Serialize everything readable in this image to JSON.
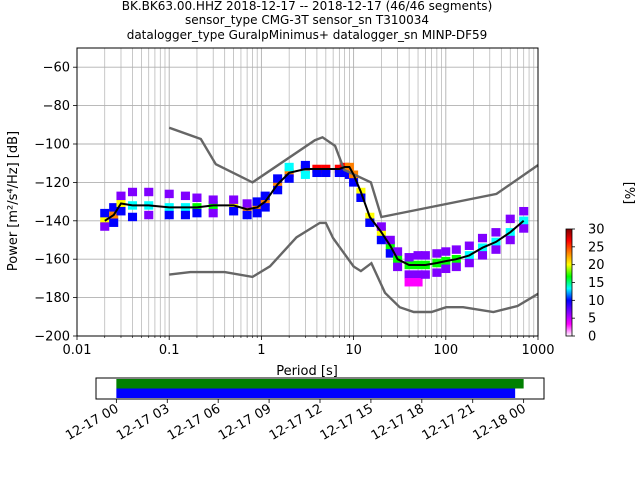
{
  "chart_data": {
    "type": "heatmap",
    "title_lines": [
      "BK.BK63.00.HHZ   2018-12-17 -- 2018-12-17  (46/46 segments)",
      "sensor_type CMG-3T sensor_sn T310034",
      "datalogger_type GuralpMinimus+ datalogger_sn MINP-DF59"
    ],
    "xlabel": "Period [s]",
    "ylabel": "Power [m²/s⁴/Hz] [dB]",
    "x_scale": "log",
    "xlim": [
      0.01,
      1000
    ],
    "ylim": [
      -200,
      -50
    ],
    "x_ticks": [
      0.01,
      0.1,
      1,
      10,
      100,
      1000
    ],
    "x_tick_labels": [
      "0.01",
      "0.1",
      "1",
      "10",
      "100",
      "1000"
    ],
    "y_ticks": [
      -200,
      -180,
      -160,
      -140,
      -120,
      -100,
      -80,
      -60
    ],
    "y_tick_labels": [
      "−200",
      "−180",
      "−160",
      "−140",
      "−120",
      "−100",
      "−80",
      "−60"
    ],
    "grid": true,
    "colorbar": {
      "label": "[%]",
      "min": 0,
      "max": 30,
      "ticks": [
        0,
        5,
        10,
        15,
        20,
        25,
        30
      ],
      "tick_labels": [
        "0",
        "5",
        "10",
        "15",
        "20",
        "25",
        "30"
      ],
      "colors": [
        "#ffffff",
        "#ff00ff",
        "#8000ff",
        "#0000ff",
        "#00ffff",
        "#00ff00",
        "#ffff00",
        "#ff8000",
        "#ff0000",
        "#800000"
      ]
    },
    "noise_models": [
      {
        "x": [
          0.1,
          0.22,
          0.32,
          0.8,
          3.8,
          4.6,
          6.3,
          7.9,
          15.4,
          20,
          354.8,
          1000
        ],
        "y": [
          -91.5,
          -97.4,
          -110.5,
          -120,
          -98,
          -96.5,
          -101,
          -113.5,
          -120,
          -138,
          -126,
          -111
        ]
      },
      {
        "x": [
          0.1,
          0.17,
          0.4,
          0.8,
          1.24,
          2.4,
          4.3,
          5,
          6,
          10,
          12,
          15.6,
          21.9,
          31.6,
          45,
          70,
          101,
          154,
          328,
          600,
          1000
        ],
        "y": [
          -168,
          -166.7,
          -166.7,
          -169.2,
          -163.7,
          -148.6,
          -141.1,
          -141.1,
          -149,
          -163.8,
          -166.2,
          -162.1,
          -177.5,
          -185,
          -187.5,
          -187.5,
          -185,
          -185,
          -187.5,
          -184.4,
          -178
        ]
      }
    ],
    "mode_curve": {
      "x": [
        0.02,
        0.025,
        0.03,
        0.04,
        0.06,
        0.1,
        0.15,
        0.2,
        0.3,
        0.5,
        0.7,
        0.9,
        1.1,
        1.5,
        2,
        3,
        4,
        5,
        7,
        8,
        9,
        10,
        12,
        15,
        20,
        25,
        30,
        40,
        50,
        60,
        80,
        100,
        130,
        180,
        250,
        350,
        500,
        700
      ],
      "y": [
        -140,
        -137,
        -131,
        -132,
        -132,
        -133,
        -133,
        -133,
        -132,
        -132,
        -134,
        -133,
        -130,
        -121,
        -115,
        -113,
        -113,
        -113,
        -113,
        -112,
        -112,
        -116,
        -125,
        -138,
        -146,
        -153,
        -160,
        -163,
        -163,
        -163,
        -162,
        -161,
        -160,
        -158,
        -154,
        -151,
        -146,
        -140
      ]
    },
    "density_cells": [
      {
        "x": 0.02,
        "y": -140,
        "pct": 20
      },
      {
        "x": 0.02,
        "y": -136,
        "pct": 10
      },
      {
        "x": 0.02,
        "y": -143,
        "pct": 8
      },
      {
        "x": 0.025,
        "y": -137,
        "pct": 22
      },
      {
        "x": 0.025,
        "y": -133,
        "pct": 10
      },
      {
        "x": 0.025,
        "y": -141,
        "pct": 10
      },
      {
        "x": 0.03,
        "y": -131,
        "pct": 20
      },
      {
        "x": 0.03,
        "y": -127,
        "pct": 8
      },
      {
        "x": 0.03,
        "y": -135,
        "pct": 10
      },
      {
        "x": 0.04,
        "y": -132,
        "pct": 14
      },
      {
        "x": 0.04,
        "y": -125,
        "pct": 5
      },
      {
        "x": 0.04,
        "y": -138,
        "pct": 9
      },
      {
        "x": 0.06,
        "y": -132,
        "pct": 12
      },
      {
        "x": 0.06,
        "y": -125,
        "pct": 5
      },
      {
        "x": 0.06,
        "y": -137,
        "pct": 8
      },
      {
        "x": 0.1,
        "y": -133,
        "pct": 13
      },
      {
        "x": 0.1,
        "y": -126,
        "pct": 5
      },
      {
        "x": 0.1,
        "y": -137,
        "pct": 9
      },
      {
        "x": 0.15,
        "y": -133,
        "pct": 14
      },
      {
        "x": 0.15,
        "y": -127,
        "pct": 5
      },
      {
        "x": 0.15,
        "y": -137,
        "pct": 9
      },
      {
        "x": 0.2,
        "y": -133,
        "pct": 16
      },
      {
        "x": 0.2,
        "y": -128,
        "pct": 6
      },
      {
        "x": 0.2,
        "y": -136,
        "pct": 9
      },
      {
        "x": 0.3,
        "y": -132,
        "pct": 18
      },
      {
        "x": 0.3,
        "y": -129,
        "pct": 7
      },
      {
        "x": 0.3,
        "y": -136,
        "pct": 8
      },
      {
        "x": 0.5,
        "y": -132,
        "pct": 20
      },
      {
        "x": 0.5,
        "y": -129,
        "pct": 8
      },
      {
        "x": 0.5,
        "y": -135,
        "pct": 9
      },
      {
        "x": 0.7,
        "y": -134,
        "pct": 22
      },
      {
        "x": 0.7,
        "y": -131,
        "pct": 8
      },
      {
        "x": 0.7,
        "y": -137,
        "pct": 9
      },
      {
        "x": 0.9,
        "y": -133,
        "pct": 24
      },
      {
        "x": 0.9,
        "y": -130,
        "pct": 10
      },
      {
        "x": 0.9,
        "y": -136,
        "pct": 10
      },
      {
        "x": 1.1,
        "y": -130,
        "pct": 22
      },
      {
        "x": 1.1,
        "y": -127,
        "pct": 10
      },
      {
        "x": 1.1,
        "y": -133,
        "pct": 10
      },
      {
        "x": 1.5,
        "y": -121,
        "pct": 22
      },
      {
        "x": 1.5,
        "y": -118,
        "pct": 10
      },
      {
        "x": 1.5,
        "y": -124,
        "pct": 10
      },
      {
        "x": 2,
        "y": -115,
        "pct": 24
      },
      {
        "x": 2,
        "y": -112,
        "pct": 12
      },
      {
        "x": 2,
        "y": -118,
        "pct": 10
      },
      {
        "x": 3,
        "y": -113,
        "pct": 26
      },
      {
        "x": 3,
        "y": -111,
        "pct": 10
      },
      {
        "x": 3,
        "y": -116,
        "pct": 12
      },
      {
        "x": 4,
        "y": -113,
        "pct": 28
      },
      {
        "x": 4,
        "y": -115,
        "pct": 10
      },
      {
        "x": 5,
        "y": -113,
        "pct": 28
      },
      {
        "x": 5,
        "y": -115,
        "pct": 10
      },
      {
        "x": 7,
        "y": -113,
        "pct": 27
      },
      {
        "x": 7,
        "y": -115,
        "pct": 10
      },
      {
        "x": 8,
        "y": -112,
        "pct": 26
      },
      {
        "x": 8,
        "y": -115,
        "pct": 10
      },
      {
        "x": 9,
        "y": -112,
        "pct": 24
      },
      {
        "x": 9,
        "y": -116,
        "pct": 10
      },
      {
        "x": 10,
        "y": -116,
        "pct": 22
      },
      {
        "x": 10,
        "y": -120,
        "pct": 10
      },
      {
        "x": 12,
        "y": -125,
        "pct": 20
      },
      {
        "x": 12,
        "y": -128,
        "pct": 10
      },
      {
        "x": 15,
        "y": -138,
        "pct": 20
      },
      {
        "x": 15,
        "y": -141,
        "pct": 10
      },
      {
        "x": 20,
        "y": -146,
        "pct": 20
      },
      {
        "x": 20,
        "y": -143,
        "pct": 8
      },
      {
        "x": 20,
        "y": -150,
        "pct": 10
      },
      {
        "x": 25,
        "y": -153,
        "pct": 18
      },
      {
        "x": 25,
        "y": -150,
        "pct": 8
      },
      {
        "x": 25,
        "y": -157,
        "pct": 10
      },
      {
        "x": 30,
        "y": -160,
        "pct": 16
      },
      {
        "x": 30,
        "y": -156,
        "pct": 8
      },
      {
        "x": 30,
        "y": -164,
        "pct": 8
      },
      {
        "x": 40,
        "y": -163,
        "pct": 16
      },
      {
        "x": 40,
        "y": -159,
        "pct": 8
      },
      {
        "x": 40,
        "y": -168,
        "pct": 6
      },
      {
        "x": 40,
        "y": -172,
        "pct": 4
      },
      {
        "x": 50,
        "y": -163,
        "pct": 16
      },
      {
        "x": 50,
        "y": -158,
        "pct": 8
      },
      {
        "x": 50,
        "y": -168,
        "pct": 6
      },
      {
        "x": 50,
        "y": -172,
        "pct": 4
      },
      {
        "x": 60,
        "y": -163,
        "pct": 15
      },
      {
        "x": 60,
        "y": -158,
        "pct": 8
      },
      {
        "x": 60,
        "y": -168,
        "pct": 6
      },
      {
        "x": 80,
        "y": -162,
        "pct": 15
      },
      {
        "x": 80,
        "y": -157,
        "pct": 8
      },
      {
        "x": 80,
        "y": -167,
        "pct": 5
      },
      {
        "x": 100,
        "y": -161,
        "pct": 15
      },
      {
        "x": 100,
        "y": -156,
        "pct": 8
      },
      {
        "x": 100,
        "y": -165,
        "pct": 5
      },
      {
        "x": 130,
        "y": -160,
        "pct": 15
      },
      {
        "x": 130,
        "y": -155,
        "pct": 8
      },
      {
        "x": 130,
        "y": -164,
        "pct": 6
      },
      {
        "x": 180,
        "y": -158,
        "pct": 14
      },
      {
        "x": 180,
        "y": -153,
        "pct": 8
      },
      {
        "x": 180,
        "y": -162,
        "pct": 6
      },
      {
        "x": 250,
        "y": -154,
        "pct": 14
      },
      {
        "x": 250,
        "y": -149,
        "pct": 8
      },
      {
        "x": 250,
        "y": -158,
        "pct": 6
      },
      {
        "x": 350,
        "y": -151,
        "pct": 14
      },
      {
        "x": 350,
        "y": -146,
        "pct": 8
      },
      {
        "x": 350,
        "y": -155,
        "pct": 6
      },
      {
        "x": 500,
        "y": -146,
        "pct": 14
      },
      {
        "x": 500,
        "y": -139,
        "pct": 8
      },
      {
        "x": 500,
        "y": -150,
        "pct": 6
      },
      {
        "x": 700,
        "y": -140,
        "pct": 14
      },
      {
        "x": 700,
        "y": -135,
        "pct": 8
      },
      {
        "x": 700,
        "y": -144,
        "pct": 6
      }
    ],
    "timeline": {
      "tick_labels": [
        "12-17 00",
        "12-17 03",
        "12-17 06",
        "12-17 09",
        "12-17 12",
        "12-17 15",
        "12-17 18",
        "12-17 21",
        "12-18 00"
      ],
      "tick_hours": [
        0,
        3,
        6,
        9,
        12,
        15,
        18,
        21,
        24
      ],
      "range_hours": [
        -1.2,
        25.2
      ],
      "bars": [
        {
          "start_hour": 0,
          "end_hour": 24.0,
          "color": "#008000"
        },
        {
          "start_hour": 0,
          "end_hour": 23.5,
          "color": "#0000ff"
        }
      ]
    }
  }
}
